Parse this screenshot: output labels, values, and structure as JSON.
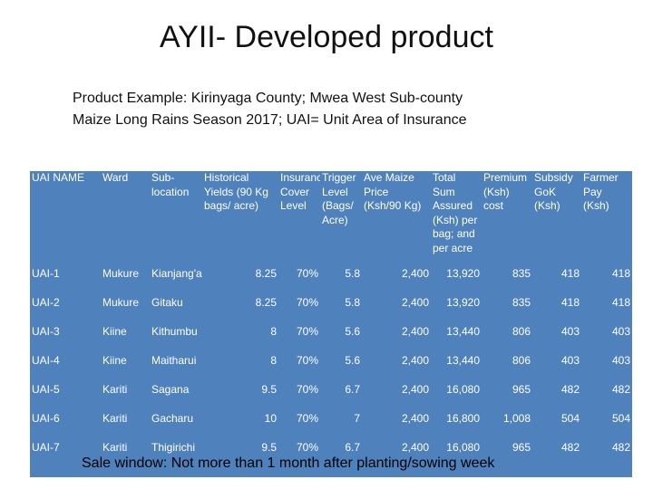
{
  "title": "AYII- Developed product",
  "subtitle": {
    "line1": "Product Example: Kirinyaga County; Mwea West Sub-county",
    "line2": "Maize Long Rains Season 2017; UAI= Unit Area of Insurance"
  },
  "table": {
    "headers": [
      "UAI NAME",
      "Ward",
      "Sub-location",
      "Historical Yields (90 Kg bags/ acre)",
      "Insurance Cover Level",
      "Trigger Level (Bags/ Acre)",
      "Ave Maize Price (Ksh/90 Kg)",
      "Total Sum Assured (Ksh) per bag; and per acre",
      "Premium (Ksh) cost",
      "Subsidy GoK (Ksh)",
      "Farmer Pay (Ksh)"
    ],
    "rows": [
      [
        "UAI-1",
        "Mukure",
        "Kianjang'a",
        "8.25",
        "70%",
        "5.8",
        "2,400",
        "13,920",
        "835",
        "418",
        "418"
      ],
      [
        "UAI-2",
        "Mukure",
        "Gitaku",
        "8.25",
        "70%",
        "5.8",
        "2,400",
        "13,920",
        "835",
        "418",
        "418"
      ],
      [
        "UAI-3",
        "Kiine",
        "Kithumbu",
        "8",
        "70%",
        "5.6",
        "2,400",
        "13,440",
        "806",
        "403",
        "403"
      ],
      [
        "UAI-4",
        "Kiine",
        "Maitharui",
        "8",
        "70%",
        "5.6",
        "2,400",
        "13,440",
        "806",
        "403",
        "403"
      ],
      [
        "UAI-5",
        "Kariti",
        "Sagana",
        "9.5",
        "70%",
        "6.7",
        "2,400",
        "16,080",
        "965",
        "482",
        "482"
      ],
      [
        "UAI-6",
        "Kariti",
        "Gacharu",
        "10",
        "70%",
        "7",
        "2,400",
        "16,800",
        "1,008",
        "504",
        "504"
      ],
      [
        "UAI-7",
        "Kariti",
        "Thigirichi",
        "9.5",
        "70%",
        "6.7",
        "2,400",
        "16,080",
        "965",
        "482",
        "482"
      ]
    ]
  },
  "footnote": "Sale window: Not more than 1 month after planting/sowing week",
  "colors": {
    "table_bg": "#4f81bd",
    "table_text": "#ffffff"
  }
}
